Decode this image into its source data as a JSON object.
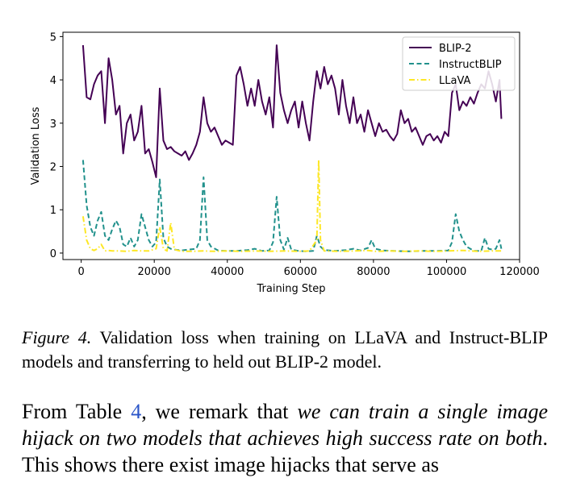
{
  "chart_data": {
    "type": "line",
    "xlabel": "Training Step",
    "ylabel": "Validation Loss",
    "xlim": [
      -5000,
      120000
    ],
    "ylim": [
      -0.15,
      5.1
    ],
    "x_ticks": [
      0,
      20000,
      40000,
      60000,
      80000,
      100000,
      120000
    ],
    "x_tick_labels": [
      "0",
      "20000",
      "40000",
      "60000",
      "80000",
      "100000",
      "120000"
    ],
    "y_ticks": [
      0,
      1,
      2,
      3,
      4,
      5
    ],
    "y_tick_labels": [
      "0",
      "1",
      "2",
      "3",
      "4",
      "5"
    ],
    "grid": false,
    "legend_position": "top-right",
    "series": [
      {
        "name": "BLIP-2",
        "color": "#440154",
        "style": "solid",
        "points": [
          [
            500,
            4.8
          ],
          [
            1500,
            3.6
          ],
          [
            2500,
            3.55
          ],
          [
            3500,
            3.9
          ],
          [
            4500,
            4.1
          ],
          [
            5500,
            4.2
          ],
          [
            6500,
            3.0
          ],
          [
            7500,
            4.5
          ],
          [
            8500,
            4.0
          ],
          [
            9500,
            3.2
          ],
          [
            10500,
            3.4
          ],
          [
            11500,
            2.3
          ],
          [
            12500,
            3.0
          ],
          [
            13500,
            3.2
          ],
          [
            14500,
            2.6
          ],
          [
            15500,
            2.8
          ],
          [
            16500,
            3.4
          ],
          [
            17500,
            2.3
          ],
          [
            18500,
            2.4
          ],
          [
            19500,
            2.1
          ],
          [
            20500,
            1.75
          ],
          [
            21500,
            3.8
          ],
          [
            22500,
            2.6
          ],
          [
            23500,
            2.4
          ],
          [
            24500,
            2.45
          ],
          [
            25500,
            2.35
          ],
          [
            26500,
            2.3
          ],
          [
            27500,
            2.25
          ],
          [
            28500,
            2.35
          ],
          [
            29500,
            2.15
          ],
          [
            30500,
            2.3
          ],
          [
            31500,
            2.5
          ],
          [
            32500,
            2.8
          ],
          [
            33500,
            3.6
          ],
          [
            34500,
            3.0
          ],
          [
            35500,
            2.8
          ],
          [
            36500,
            2.9
          ],
          [
            37500,
            2.7
          ],
          [
            38500,
            2.5
          ],
          [
            39500,
            2.6
          ],
          [
            40500,
            2.55
          ],
          [
            41500,
            2.5
          ],
          [
            42500,
            4.1
          ],
          [
            43500,
            4.3
          ],
          [
            44500,
            3.9
          ],
          [
            45500,
            3.4
          ],
          [
            46500,
            3.8
          ],
          [
            47500,
            3.4
          ],
          [
            48500,
            4.0
          ],
          [
            49500,
            3.5
          ],
          [
            50500,
            3.2
          ],
          [
            51500,
            3.6
          ],
          [
            52500,
            2.9
          ],
          [
            53500,
            4.8
          ],
          [
            54500,
            3.7
          ],
          [
            55500,
            3.3
          ],
          [
            56500,
            3.0
          ],
          [
            57500,
            3.3
          ],
          [
            58500,
            3.5
          ],
          [
            59500,
            2.9
          ],
          [
            60500,
            3.5
          ],
          [
            61500,
            3.0
          ],
          [
            62500,
            2.6
          ],
          [
            63500,
            3.5
          ],
          [
            64500,
            4.2
          ],
          [
            65500,
            3.8
          ],
          [
            66500,
            4.3
          ],
          [
            67500,
            3.9
          ],
          [
            68500,
            4.1
          ],
          [
            69500,
            3.8
          ],
          [
            70500,
            3.2
          ],
          [
            71500,
            4.0
          ],
          [
            72500,
            3.4
          ],
          [
            73500,
            3.0
          ],
          [
            74500,
            3.6
          ],
          [
            75500,
            3.0
          ],
          [
            76500,
            3.2
          ],
          [
            77500,
            2.8
          ],
          [
            78500,
            3.3
          ],
          [
            79500,
            3.0
          ],
          [
            80500,
            2.7
          ],
          [
            81500,
            3.0
          ],
          [
            82500,
            2.8
          ],
          [
            83500,
            2.85
          ],
          [
            84500,
            2.7
          ],
          [
            85500,
            2.6
          ],
          [
            86500,
            2.75
          ],
          [
            87500,
            3.3
          ],
          [
            88500,
            3.0
          ],
          [
            89500,
            3.1
          ],
          [
            90500,
            2.8
          ],
          [
            91500,
            2.9
          ],
          [
            92500,
            2.7
          ],
          [
            93500,
            2.5
          ],
          [
            94500,
            2.7
          ],
          [
            95500,
            2.75
          ],
          [
            96500,
            2.6
          ],
          [
            97500,
            2.7
          ],
          [
            98500,
            2.55
          ],
          [
            99500,
            2.8
          ],
          [
            100500,
            2.7
          ],
          [
            101500,
            3.7
          ],
          [
            102500,
            3.9
          ],
          [
            103500,
            3.3
          ],
          [
            104500,
            3.5
          ],
          [
            105500,
            3.4
          ],
          [
            106500,
            3.6
          ],
          [
            107500,
            3.45
          ],
          [
            108500,
            3.7
          ],
          [
            109500,
            3.9
          ],
          [
            110500,
            3.8
          ],
          [
            111500,
            4.2
          ],
          [
            112500,
            3.9
          ],
          [
            113500,
            3.5
          ],
          [
            114500,
            4.0
          ],
          [
            115000,
            3.1
          ]
        ]
      },
      {
        "name": "InstructBLIP",
        "color": "#21918c",
        "style": "dashed",
        "points": [
          [
            500,
            2.15
          ],
          [
            1500,
            1.1
          ],
          [
            2500,
            0.6
          ],
          [
            3500,
            0.4
          ],
          [
            4500,
            0.75
          ],
          [
            5500,
            0.95
          ],
          [
            6500,
            0.4
          ],
          [
            7500,
            0.3
          ],
          [
            8500,
            0.55
          ],
          [
            9500,
            0.75
          ],
          [
            10500,
            0.6
          ],
          [
            11500,
            0.2
          ],
          [
            12500,
            0.15
          ],
          [
            13500,
            0.35
          ],
          [
            14500,
            0.15
          ],
          [
            15500,
            0.3
          ],
          [
            16500,
            0.9
          ],
          [
            17500,
            0.6
          ],
          [
            18500,
            0.3
          ],
          [
            19500,
            0.15
          ],
          [
            20500,
            0.25
          ],
          [
            21500,
            1.7
          ],
          [
            22500,
            0.35
          ],
          [
            23500,
            0.15
          ],
          [
            24500,
            0.1
          ],
          [
            25500,
            0.08
          ],
          [
            27500,
            0.06
          ],
          [
            29500,
            0.08
          ],
          [
            31500,
            0.1
          ],
          [
            32500,
            0.3
          ],
          [
            33500,
            1.75
          ],
          [
            34500,
            0.3
          ],
          [
            35500,
            0.15
          ],
          [
            37500,
            0.06
          ],
          [
            39500,
            0.05
          ],
          [
            42500,
            0.05
          ],
          [
            45500,
            0.07
          ],
          [
            47500,
            0.1
          ],
          [
            49500,
            0.05
          ],
          [
            51500,
            0.06
          ],
          [
            52500,
            0.25
          ],
          [
            53500,
            1.3
          ],
          [
            54500,
            0.3
          ],
          [
            55500,
            0.08
          ],
          [
            56500,
            0.35
          ],
          [
            57500,
            0.08
          ],
          [
            59500,
            0.05
          ],
          [
            61500,
            0.04
          ],
          [
            63500,
            0.05
          ],
          [
            64500,
            0.4
          ],
          [
            65500,
            0.15
          ],
          [
            66500,
            0.07
          ],
          [
            69500,
            0.05
          ],
          [
            72500,
            0.07
          ],
          [
            74500,
            0.1
          ],
          [
            76500,
            0.06
          ],
          [
            78500,
            0.12
          ],
          [
            79500,
            0.3
          ],
          [
            80500,
            0.1
          ],
          [
            82500,
            0.06
          ],
          [
            85500,
            0.05
          ],
          [
            89500,
            0.04
          ],
          [
            93500,
            0.05
          ],
          [
            97500,
            0.05
          ],
          [
            100500,
            0.06
          ],
          [
            101500,
            0.25
          ],
          [
            102500,
            0.9
          ],
          [
            103500,
            0.5
          ],
          [
            104500,
            0.3
          ],
          [
            105500,
            0.15
          ],
          [
            106500,
            0.1
          ],
          [
            107500,
            0.05
          ],
          [
            109500,
            0.05
          ],
          [
            110500,
            0.35
          ],
          [
            111500,
            0.1
          ],
          [
            112500,
            0.08
          ],
          [
            113500,
            0.1
          ],
          [
            114500,
            0.3
          ],
          [
            115000,
            0.1
          ]
        ]
      },
      {
        "name": "LLaVA",
        "color": "#fde725",
        "style": "dashdot",
        "points": [
          [
            500,
            0.85
          ],
          [
            1500,
            0.3
          ],
          [
            2500,
            0.1
          ],
          [
            3500,
            0.06
          ],
          [
            4500,
            0.1
          ],
          [
            5500,
            0.2
          ],
          [
            6500,
            0.05
          ],
          [
            7500,
            0.06
          ],
          [
            8500,
            0.05
          ],
          [
            10500,
            0.05
          ],
          [
            12500,
            0.04
          ],
          [
            14500,
            0.06
          ],
          [
            16500,
            0.05
          ],
          [
            18500,
            0.05
          ],
          [
            20500,
            0.1
          ],
          [
            21500,
            0.6
          ],
          [
            22500,
            0.1
          ],
          [
            23500,
            0.05
          ],
          [
            24500,
            0.7
          ],
          [
            25500,
            0.08
          ],
          [
            27500,
            0.04
          ],
          [
            30500,
            0.04
          ],
          [
            33500,
            0.05
          ],
          [
            36500,
            0.04
          ],
          [
            39500,
            0.05
          ],
          [
            43500,
            0.04
          ],
          [
            47500,
            0.05
          ],
          [
            51500,
            0.04
          ],
          [
            55500,
            0.05
          ],
          [
            59500,
            0.04
          ],
          [
            62500,
            0.05
          ],
          [
            64500,
            0.3
          ],
          [
            65000,
            2.15
          ],
          [
            65500,
            0.3
          ],
          [
            66500,
            0.05
          ],
          [
            70500,
            0.04
          ],
          [
            74500,
            0.05
          ],
          [
            78500,
            0.06
          ],
          [
            80500,
            0.04
          ],
          [
            84500,
            0.05
          ],
          [
            88500,
            0.04
          ],
          [
            92500,
            0.05
          ],
          [
            96500,
            0.04
          ],
          [
            100500,
            0.05
          ],
          [
            104500,
            0.06
          ],
          [
            108500,
            0.04
          ],
          [
            112500,
            0.05
          ],
          [
            115000,
            0.05
          ]
        ]
      }
    ]
  },
  "caption": {
    "figure_label": "Figure 4.",
    "text": "Validation loss when training on LLaVA and Instruct-BLIP models and transferring to held out BLIP-2 model."
  },
  "paragraph": {
    "part1": "From Table ",
    "table_ref": "4",
    "part2": ", we remark that ",
    "emphasis": "we can train a single image hijack on two models that achieves high success rate on both",
    "part3": ". This shows there exist image hijacks that serve as"
  }
}
